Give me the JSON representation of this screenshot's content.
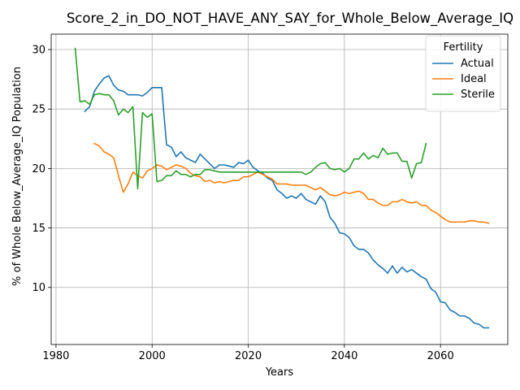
{
  "chart_data": {
    "type": "line",
    "title": "Score_2_in_DO_NOT_HAVE_ANY_SAY_for_Whole_Below_Average_IQ",
    "xlabel": "Years",
    "ylabel": "% of Whole Below_Average_IQ Population",
    "xlim": [
      1979,
      2074
    ],
    "ylim": [
      5.2,
      31.3
    ],
    "xticks": [
      1980,
      2000,
      2020,
      2040,
      2060
    ],
    "yticks": [
      10,
      15,
      20,
      25,
      30
    ],
    "grid": true,
    "legend": {
      "title": "Fertility",
      "position": "top-right"
    },
    "series": [
      {
        "name": "Actual",
        "color": "#1f77b4",
        "x": [
          1986,
          1987,
          1988,
          1989,
          1990,
          1991,
          1992,
          1993,
          1994,
          1995,
          1996,
          1997,
          1998,
          1999,
          2000,
          2001,
          2002,
          2003,
          2004,
          2005,
          2006,
          2007,
          2008,
          2009,
          2010,
          2011,
          2012,
          2013,
          2014,
          2015,
          2016,
          2017,
          2018,
          2019,
          2020,
          2021,
          2022,
          2023,
          2024,
          2025,
          2026,
          2027,
          2028,
          2029,
          2030,
          2031,
          2032,
          2033,
          2034,
          2035,
          2036,
          2037,
          2038,
          2039,
          2040,
          2041,
          2042,
          2043,
          2044,
          2045,
          2046,
          2047,
          2048,
          2049,
          2050,
          2051,
          2052,
          2053,
          2054,
          2055,
          2056,
          2057,
          2058,
          2059,
          2060,
          2061,
          2062,
          2063,
          2064,
          2065,
          2066,
          2067,
          2068,
          2069,
          2070
        ],
        "values": [
          24.8,
          25.2,
          26.5,
          27.1,
          27.6,
          27.8,
          27.0,
          26.6,
          26.5,
          26.2,
          26.2,
          26.2,
          26.1,
          26.4,
          26.8,
          26.8,
          26.8,
          22.0,
          21.8,
          21.0,
          21.4,
          20.9,
          20.7,
          20.5,
          21.2,
          20.8,
          20.4,
          20.0,
          20.3,
          20.3,
          20.2,
          20.1,
          20.5,
          20.4,
          20.7,
          20.1,
          19.8,
          19.6,
          19.2,
          19.0,
          18.2,
          17.9,
          17.5,
          17.7,
          17.5,
          17.9,
          17.4,
          17.2,
          17.0,
          17.7,
          17.2,
          15.9,
          15.4,
          14.6,
          14.5,
          14.2,
          13.5,
          13.2,
          13.2,
          12.9,
          12.3,
          11.9,
          11.6,
          11.2,
          11.8,
          11.2,
          11.7,
          11.3,
          11.5,
          11.2,
          10.9,
          10.7,
          9.9,
          9.6,
          8.8,
          8.7,
          8.1,
          7.9,
          7.6,
          7.6,
          7.4,
          7.0,
          6.9,
          6.6,
          6.6
        ]
      },
      {
        "name": "Ideal",
        "color": "#ff7f0e",
        "x": [
          1988,
          1989,
          1990,
          1991,
          1992,
          1993,
          1994,
          1995,
          1996,
          1997,
          1998,
          1999,
          2000,
          2001,
          2002,
          2003,
          2004,
          2005,
          2006,
          2007,
          2008,
          2009,
          2010,
          2011,
          2012,
          2013,
          2014,
          2015,
          2016,
          2017,
          2018,
          2019,
          2020,
          2021,
          2022,
          2023,
          2024,
          2025,
          2026,
          2027,
          2028,
          2029,
          2030,
          2031,
          2032,
          2033,
          2034,
          2035,
          2036,
          2037,
          2038,
          2039,
          2040,
          2041,
          2042,
          2043,
          2044,
          2045,
          2046,
          2047,
          2048,
          2049,
          2050,
          2051,
          2052,
          2053,
          2054,
          2055,
          2056,
          2057,
          2058,
          2059,
          2060,
          2061,
          2062,
          2063,
          2064,
          2065,
          2066,
          2067,
          2068,
          2069,
          2070
        ],
        "values": [
          22.1,
          21.9,
          21.4,
          21.2,
          20.9,
          19.4,
          18.0,
          18.7,
          19.7,
          19.4,
          19.2,
          19.8,
          20.0,
          20.3,
          20.2,
          19.9,
          20.1,
          20.3,
          20.2,
          20.0,
          19.6,
          19.4,
          19.3,
          18.9,
          19.0,
          18.8,
          18.9,
          18.8,
          18.9,
          19.0,
          19.0,
          19.3,
          19.3,
          19.5,
          19.7,
          19.5,
          19.3,
          19.1,
          18.7,
          18.7,
          18.7,
          18.6,
          18.6,
          18.6,
          18.6,
          18.4,
          18.2,
          18.4,
          18.1,
          17.8,
          17.7,
          17.8,
          18.0,
          17.9,
          18.0,
          18.1,
          17.9,
          17.4,
          17.4,
          17.1,
          16.9,
          16.9,
          17.2,
          17.2,
          17.4,
          17.2,
          17.1,
          17.2,
          16.9,
          16.9,
          16.5,
          16.3,
          16.0,
          15.7,
          15.5,
          15.5,
          15.5,
          15.5,
          15.6,
          15.6,
          15.5,
          15.5,
          15.4
        ]
      },
      {
        "name": "Sterile",
        "color": "#2ca02c",
        "x": [
          1984,
          1985,
          1986,
          1987,
          1988,
          1989,
          1990,
          1991,
          1992,
          1993,
          1994,
          1995,
          1996,
          1997,
          1998,
          1999,
          2000,
          2001,
          2002,
          2003,
          2004,
          2005,
          2006,
          2007,
          2008,
          2009,
          2010,
          2011,
          2012,
          2013,
          2014,
          2015,
          2016,
          2017,
          2018,
          2019,
          2020,
          2021,
          2022,
          2023,
          2024,
          2025,
          2026,
          2027,
          2028,
          2029,
          2030,
          2031,
          2032,
          2033,
          2034,
          2035,
          2036,
          2037,
          2038,
          2039,
          2040,
          2041,
          2042,
          2043,
          2044,
          2045,
          2046,
          2047,
          2048,
          2049,
          2050,
          2051,
          2052,
          2053,
          2054,
          2055,
          2056,
          2057
        ],
        "values": [
          30.1,
          25.6,
          25.7,
          25.4,
          26.2,
          26.3,
          26.2,
          26.2,
          25.7,
          24.5,
          25.0,
          24.7,
          25.2,
          18.3,
          24.7,
          24.3,
          24.6,
          18.9,
          19.0,
          19.4,
          19.4,
          19.8,
          19.5,
          19.5,
          19.3,
          19.5,
          19.5,
          19.9,
          19.9,
          19.8,
          19.7,
          19.7,
          19.7,
          19.7,
          19.7,
          19.7,
          19.7,
          19.7,
          19.7,
          19.7,
          19.7,
          19.7,
          19.7,
          19.7,
          19.7,
          19.7,
          19.7,
          19.7,
          19.5,
          19.7,
          20.1,
          20.4,
          20.5,
          20.0,
          19.9,
          20.0,
          19.7,
          20.0,
          20.8,
          20.8,
          21.3,
          20.8,
          21.1,
          20.9,
          21.7,
          21.2,
          21.3,
          21.3,
          20.6,
          20.6,
          19.2,
          20.4,
          20.5,
          22.1
        ]
      }
    ]
  }
}
